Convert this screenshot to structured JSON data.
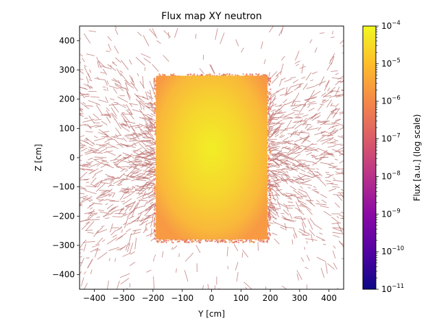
{
  "chart_data": {
    "type": "heatmap",
    "title": "Flux map XY neutron",
    "xlabel": "Y [cm]",
    "ylabel": "Z [cm]",
    "xlim": [
      -450,
      450
    ],
    "ylim": [
      -450,
      450
    ],
    "x_ticks": [
      -400,
      -300,
      -200,
      -100,
      0,
      100,
      200,
      300,
      400
    ],
    "y_ticks": [
      -400,
      -300,
      -200,
      -100,
      0,
      100,
      200,
      300,
      400
    ],
    "x_tick_labels": [
      "−400",
      "−300",
      "−200",
      "−100",
      "0",
      "100",
      "200",
      "300",
      "400"
    ],
    "y_tick_labels": [
      "−400",
      "−300",
      "−200",
      "−100",
      "0",
      "100",
      "200",
      "300",
      "400"
    ],
    "colorbar": {
      "label": "Flux [a.u.] (log scale)",
      "colormap": "plasma",
      "scale": "log",
      "range": [
        1e-11,
        0.0001
      ],
      "tick_exponents": [
        -11,
        -10,
        -9,
        -8,
        -7,
        -6,
        -5,
        -4
      ]
    },
    "regions": [
      {
        "y_range": [
          -190,
          190
        ],
        "z_range": [
          -280,
          280
        ],
        "flux_center": 5e-05,
        "flux_edge": 4e-06
      }
    ],
    "scattered_tracks": {
      "flux_level": 5e-07,
      "color": "#c07a78",
      "description_free": true
    },
    "grid": false
  }
}
